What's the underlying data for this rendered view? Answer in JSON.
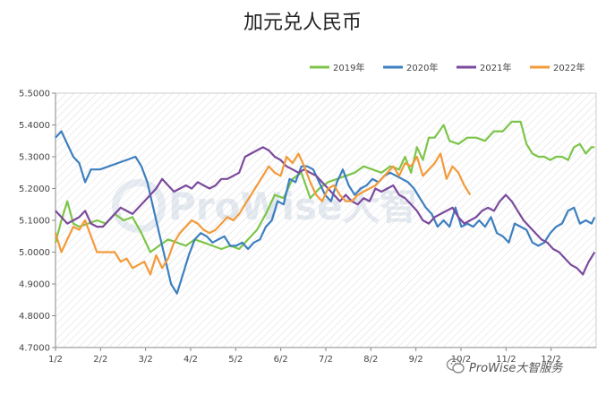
{
  "chart_data": {
    "type": "line",
    "title": "加元兑人民币",
    "ylim": [
      4.7,
      5.5
    ],
    "yticks": [
      "5.5000",
      "5.4000",
      "5.3000",
      "5.2000",
      "5.1000",
      "5.0000",
      "4.9000",
      "4.8000",
      "4.7000"
    ],
    "xticks": [
      "1/2",
      "2/2",
      "3/2",
      "4/2",
      "5/2",
      "6/2",
      "7/2",
      "8/2",
      "9/2",
      "10/2",
      "11/2",
      "12/2"
    ],
    "x_range_days": [
      0,
      365
    ],
    "legend_position": "top-right",
    "grid": "diagonal-hatch",
    "series": [
      {
        "name": "2019年",
        "color": "#7dc54a",
        "points": [
          [
            0,
            5.03
          ],
          [
            4,
            5.1
          ],
          [
            8,
            5.16
          ],
          [
            12,
            5.09
          ],
          [
            16,
            5.08
          ],
          [
            22,
            5.09
          ],
          [
            28,
            5.1
          ],
          [
            34,
            5.09
          ],
          [
            40,
            5.12
          ],
          [
            46,
            5.1
          ],
          [
            52,
            5.11
          ],
          [
            58,
            5.06
          ],
          [
            64,
            5.0
          ],
          [
            70,
            5.02
          ],
          [
            76,
            5.04
          ],
          [
            82,
            5.03
          ],
          [
            88,
            5.02
          ],
          [
            94,
            5.04
          ],
          [
            100,
            5.03
          ],
          [
            106,
            5.02
          ],
          [
            112,
            5.01
          ],
          [
            118,
            5.02
          ],
          [
            124,
            5.01
          ],
          [
            130,
            5.04
          ],
          [
            136,
            5.07
          ],
          [
            142,
            5.12
          ],
          [
            148,
            5.18
          ],
          [
            154,
            5.17
          ],
          [
            160,
            5.23
          ],
          [
            166,
            5.25
          ],
          [
            172,
            5.17
          ],
          [
            178,
            5.2
          ],
          [
            184,
            5.22
          ],
          [
            190,
            5.23
          ],
          [
            196,
            5.24
          ],
          [
            202,
            5.25
          ],
          [
            208,
            5.27
          ],
          [
            214,
            5.26
          ],
          [
            220,
            5.25
          ],
          [
            226,
            5.27
          ],
          [
            232,
            5.26
          ],
          [
            236,
            5.3
          ],
          [
            240,
            5.25
          ],
          [
            244,
            5.33
          ],
          [
            248,
            5.29
          ],
          [
            252,
            5.36
          ],
          [
            256,
            5.36
          ],
          [
            262,
            5.4
          ],
          [
            266,
            5.35
          ],
          [
            272,
            5.34
          ],
          [
            278,
            5.36
          ],
          [
            284,
            5.36
          ],
          [
            290,
            5.35
          ],
          [
            296,
            5.38
          ],
          [
            302,
            5.38
          ],
          [
            308,
            5.41
          ],
          [
            314,
            5.41
          ],
          [
            318,
            5.34
          ],
          [
            322,
            5.31
          ],
          [
            326,
            5.3
          ],
          [
            330,
            5.3
          ],
          [
            334,
            5.29
          ],
          [
            338,
            5.3
          ],
          [
            342,
            5.3
          ],
          [
            346,
            5.29
          ],
          [
            350,
            5.33
          ],
          [
            354,
            5.34
          ],
          [
            358,
            5.31
          ],
          [
            362,
            5.33
          ],
          [
            364,
            5.33
          ]
        ]
      },
      {
        "name": "2020年",
        "color": "#3d7fbf",
        "points": [
          [
            0,
            5.36
          ],
          [
            4,
            5.38
          ],
          [
            8,
            5.34
          ],
          [
            12,
            5.3
          ],
          [
            16,
            5.28
          ],
          [
            20,
            5.22
          ],
          [
            24,
            5.26
          ],
          [
            30,
            5.26
          ],
          [
            36,
            5.27
          ],
          [
            42,
            5.28
          ],
          [
            48,
            5.29
          ],
          [
            54,
            5.3
          ],
          [
            58,
            5.27
          ],
          [
            62,
            5.22
          ],
          [
            66,
            5.14
          ],
          [
            70,
            5.06
          ],
          [
            74,
            4.98
          ],
          [
            78,
            4.9
          ],
          [
            82,
            4.87
          ],
          [
            86,
            4.93
          ],
          [
            90,
            4.99
          ],
          [
            94,
            5.04
          ],
          [
            98,
            5.06
          ],
          [
            102,
            5.05
          ],
          [
            106,
            5.03
          ],
          [
            110,
            5.04
          ],
          [
            114,
            5.05
          ],
          [
            118,
            5.02
          ],
          [
            122,
            5.02
          ],
          [
            126,
            5.03
          ],
          [
            130,
            5.01
          ],
          [
            134,
            5.03
          ],
          [
            138,
            5.04
          ],
          [
            142,
            5.08
          ],
          [
            146,
            5.1
          ],
          [
            150,
            5.16
          ],
          [
            154,
            5.15
          ],
          [
            158,
            5.23
          ],
          [
            162,
            5.22
          ],
          [
            166,
            5.27
          ],
          [
            170,
            5.27
          ],
          [
            174,
            5.26
          ],
          [
            178,
            5.22
          ],
          [
            182,
            5.18
          ],
          [
            186,
            5.16
          ],
          [
            190,
            5.22
          ],
          [
            194,
            5.26
          ],
          [
            198,
            5.21
          ],
          [
            202,
            5.18
          ],
          [
            206,
            5.2
          ],
          [
            210,
            5.21
          ],
          [
            214,
            5.23
          ],
          [
            218,
            5.22
          ],
          [
            222,
            5.24
          ],
          [
            226,
            5.25
          ],
          [
            230,
            5.24
          ],
          [
            234,
            5.23
          ],
          [
            238,
            5.22
          ],
          [
            242,
            5.2
          ],
          [
            246,
            5.17
          ],
          [
            250,
            5.14
          ],
          [
            254,
            5.12
          ],
          [
            258,
            5.08
          ],
          [
            262,
            5.1
          ],
          [
            266,
            5.08
          ],
          [
            270,
            5.14
          ],
          [
            274,
            5.08
          ],
          [
            278,
            5.09
          ],
          [
            282,
            5.08
          ],
          [
            286,
            5.1
          ],
          [
            290,
            5.08
          ],
          [
            294,
            5.11
          ],
          [
            298,
            5.06
          ],
          [
            302,
            5.05
          ],
          [
            306,
            5.03
          ],
          [
            310,
            5.09
          ],
          [
            314,
            5.08
          ],
          [
            318,
            5.07
          ],
          [
            322,
            5.03
          ],
          [
            326,
            5.02
          ],
          [
            330,
            5.03
          ],
          [
            334,
            5.06
          ],
          [
            338,
            5.08
          ],
          [
            342,
            5.09
          ],
          [
            346,
            5.13
          ],
          [
            350,
            5.14
          ],
          [
            354,
            5.09
          ],
          [
            358,
            5.1
          ],
          [
            362,
            5.09
          ],
          [
            364,
            5.11
          ]
        ]
      },
      {
        "name": "2021年",
        "color": "#7b4a9c",
        "points": [
          [
            0,
            5.13
          ],
          [
            4,
            5.11
          ],
          [
            8,
            5.09
          ],
          [
            12,
            5.1
          ],
          [
            16,
            5.11
          ],
          [
            20,
            5.13
          ],
          [
            24,
            5.09
          ],
          [
            28,
            5.08
          ],
          [
            32,
            5.08
          ],
          [
            36,
            5.1
          ],
          [
            40,
            5.12
          ],
          [
            44,
            5.14
          ],
          [
            48,
            5.13
          ],
          [
            52,
            5.12
          ],
          [
            56,
            5.14
          ],
          [
            60,
            5.16
          ],
          [
            64,
            5.18
          ],
          [
            68,
            5.2
          ],
          [
            72,
            5.23
          ],
          [
            76,
            5.21
          ],
          [
            80,
            5.19
          ],
          [
            84,
            5.2
          ],
          [
            88,
            5.21
          ],
          [
            92,
            5.2
          ],
          [
            96,
            5.22
          ],
          [
            100,
            5.21
          ],
          [
            104,
            5.2
          ],
          [
            108,
            5.21
          ],
          [
            112,
            5.23
          ],
          [
            116,
            5.23
          ],
          [
            120,
            5.24
          ],
          [
            124,
            5.25
          ],
          [
            128,
            5.3
          ],
          [
            132,
            5.31
          ],
          [
            136,
            5.32
          ],
          [
            140,
            5.33
          ],
          [
            144,
            5.32
          ],
          [
            148,
            5.3
          ],
          [
            152,
            5.29
          ],
          [
            156,
            5.27
          ],
          [
            160,
            5.26
          ],
          [
            164,
            5.25
          ],
          [
            168,
            5.26
          ],
          [
            172,
            5.25
          ],
          [
            176,
            5.24
          ],
          [
            180,
            5.22
          ],
          [
            184,
            5.2
          ],
          [
            188,
            5.18
          ],
          [
            192,
            5.16
          ],
          [
            196,
            5.18
          ],
          [
            200,
            5.16
          ],
          [
            204,
            5.15
          ],
          [
            208,
            5.17
          ],
          [
            212,
            5.16
          ],
          [
            216,
            5.2
          ],
          [
            220,
            5.19
          ],
          [
            224,
            5.2
          ],
          [
            228,
            5.21
          ],
          [
            232,
            5.18
          ],
          [
            236,
            5.17
          ],
          [
            240,
            5.15
          ],
          [
            244,
            5.13
          ],
          [
            248,
            5.1
          ],
          [
            252,
            5.09
          ],
          [
            256,
            5.11
          ],
          [
            260,
            5.12
          ],
          [
            264,
            5.13
          ],
          [
            268,
            5.14
          ],
          [
            272,
            5.11
          ],
          [
            276,
            5.09
          ],
          [
            280,
            5.1
          ],
          [
            284,
            5.11
          ],
          [
            288,
            5.13
          ],
          [
            292,
            5.14
          ],
          [
            296,
            5.13
          ],
          [
            300,
            5.16
          ],
          [
            304,
            5.18
          ],
          [
            308,
            5.16
          ],
          [
            312,
            5.13
          ],
          [
            316,
            5.1
          ],
          [
            320,
            5.08
          ],
          [
            324,
            5.06
          ],
          [
            328,
            5.04
          ],
          [
            332,
            5.03
          ],
          [
            336,
            5.01
          ],
          [
            340,
            5.0
          ],
          [
            344,
            4.98
          ],
          [
            348,
            4.96
          ],
          [
            352,
            4.95
          ],
          [
            356,
            4.93
          ],
          [
            360,
            4.97
          ],
          [
            364,
            5.0
          ]
        ]
      },
      {
        "name": "2022年",
        "color": "#f39a3a",
        "points": [
          [
            0,
            5.06
          ],
          [
            4,
            5.0
          ],
          [
            8,
            5.04
          ],
          [
            12,
            5.08
          ],
          [
            16,
            5.07
          ],
          [
            20,
            5.1
          ],
          [
            24,
            5.05
          ],
          [
            28,
            5.0
          ],
          [
            32,
            5.0
          ],
          [
            36,
            5.0
          ],
          [
            40,
            5.0
          ],
          [
            44,
            4.97
          ],
          [
            48,
            4.98
          ],
          [
            52,
            4.95
          ],
          [
            56,
            4.96
          ],
          [
            60,
            4.97
          ],
          [
            64,
            4.93
          ],
          [
            68,
            4.99
          ],
          [
            72,
            4.95
          ],
          [
            76,
            4.98
          ],
          [
            80,
            5.03
          ],
          [
            84,
            5.06
          ],
          [
            88,
            5.08
          ],
          [
            92,
            5.1
          ],
          [
            96,
            5.09
          ],
          [
            100,
            5.07
          ],
          [
            104,
            5.06
          ],
          [
            108,
            5.07
          ],
          [
            112,
            5.09
          ],
          [
            116,
            5.11
          ],
          [
            120,
            5.1
          ],
          [
            124,
            5.12
          ],
          [
            128,
            5.15
          ],
          [
            132,
            5.18
          ],
          [
            136,
            5.21
          ],
          [
            140,
            5.24
          ],
          [
            144,
            5.27
          ],
          [
            148,
            5.25
          ],
          [
            152,
            5.24
          ],
          [
            156,
            5.3
          ],
          [
            160,
            5.28
          ],
          [
            164,
            5.31
          ],
          [
            168,
            5.27
          ],
          [
            172,
            5.22
          ],
          [
            176,
            5.18
          ],
          [
            180,
            5.16
          ],
          [
            184,
            5.2
          ],
          [
            188,
            5.21
          ],
          [
            192,
            5.18
          ],
          [
            196,
            5.16
          ],
          [
            200,
            5.16
          ],
          [
            204,
            5.18
          ],
          [
            208,
            5.19
          ],
          [
            212,
            5.2
          ],
          [
            216,
            5.21
          ],
          [
            220,
            5.23
          ],
          [
            224,
            5.25
          ],
          [
            228,
            5.27
          ],
          [
            232,
            5.24
          ],
          [
            236,
            5.28
          ],
          [
            240,
            5.27
          ],
          [
            244,
            5.3
          ],
          [
            248,
            5.24
          ],
          [
            252,
            5.26
          ],
          [
            256,
            5.28
          ],
          [
            260,
            5.31
          ],
          [
            264,
            5.23
          ],
          [
            268,
            5.27
          ],
          [
            272,
            5.25
          ],
          [
            276,
            5.21
          ],
          [
            280,
            5.18
          ]
        ]
      }
    ]
  },
  "watermark": "ProWise大智",
  "brand": {
    "text": "ProWise大智服务",
    "icon": "wechat-icon"
  }
}
